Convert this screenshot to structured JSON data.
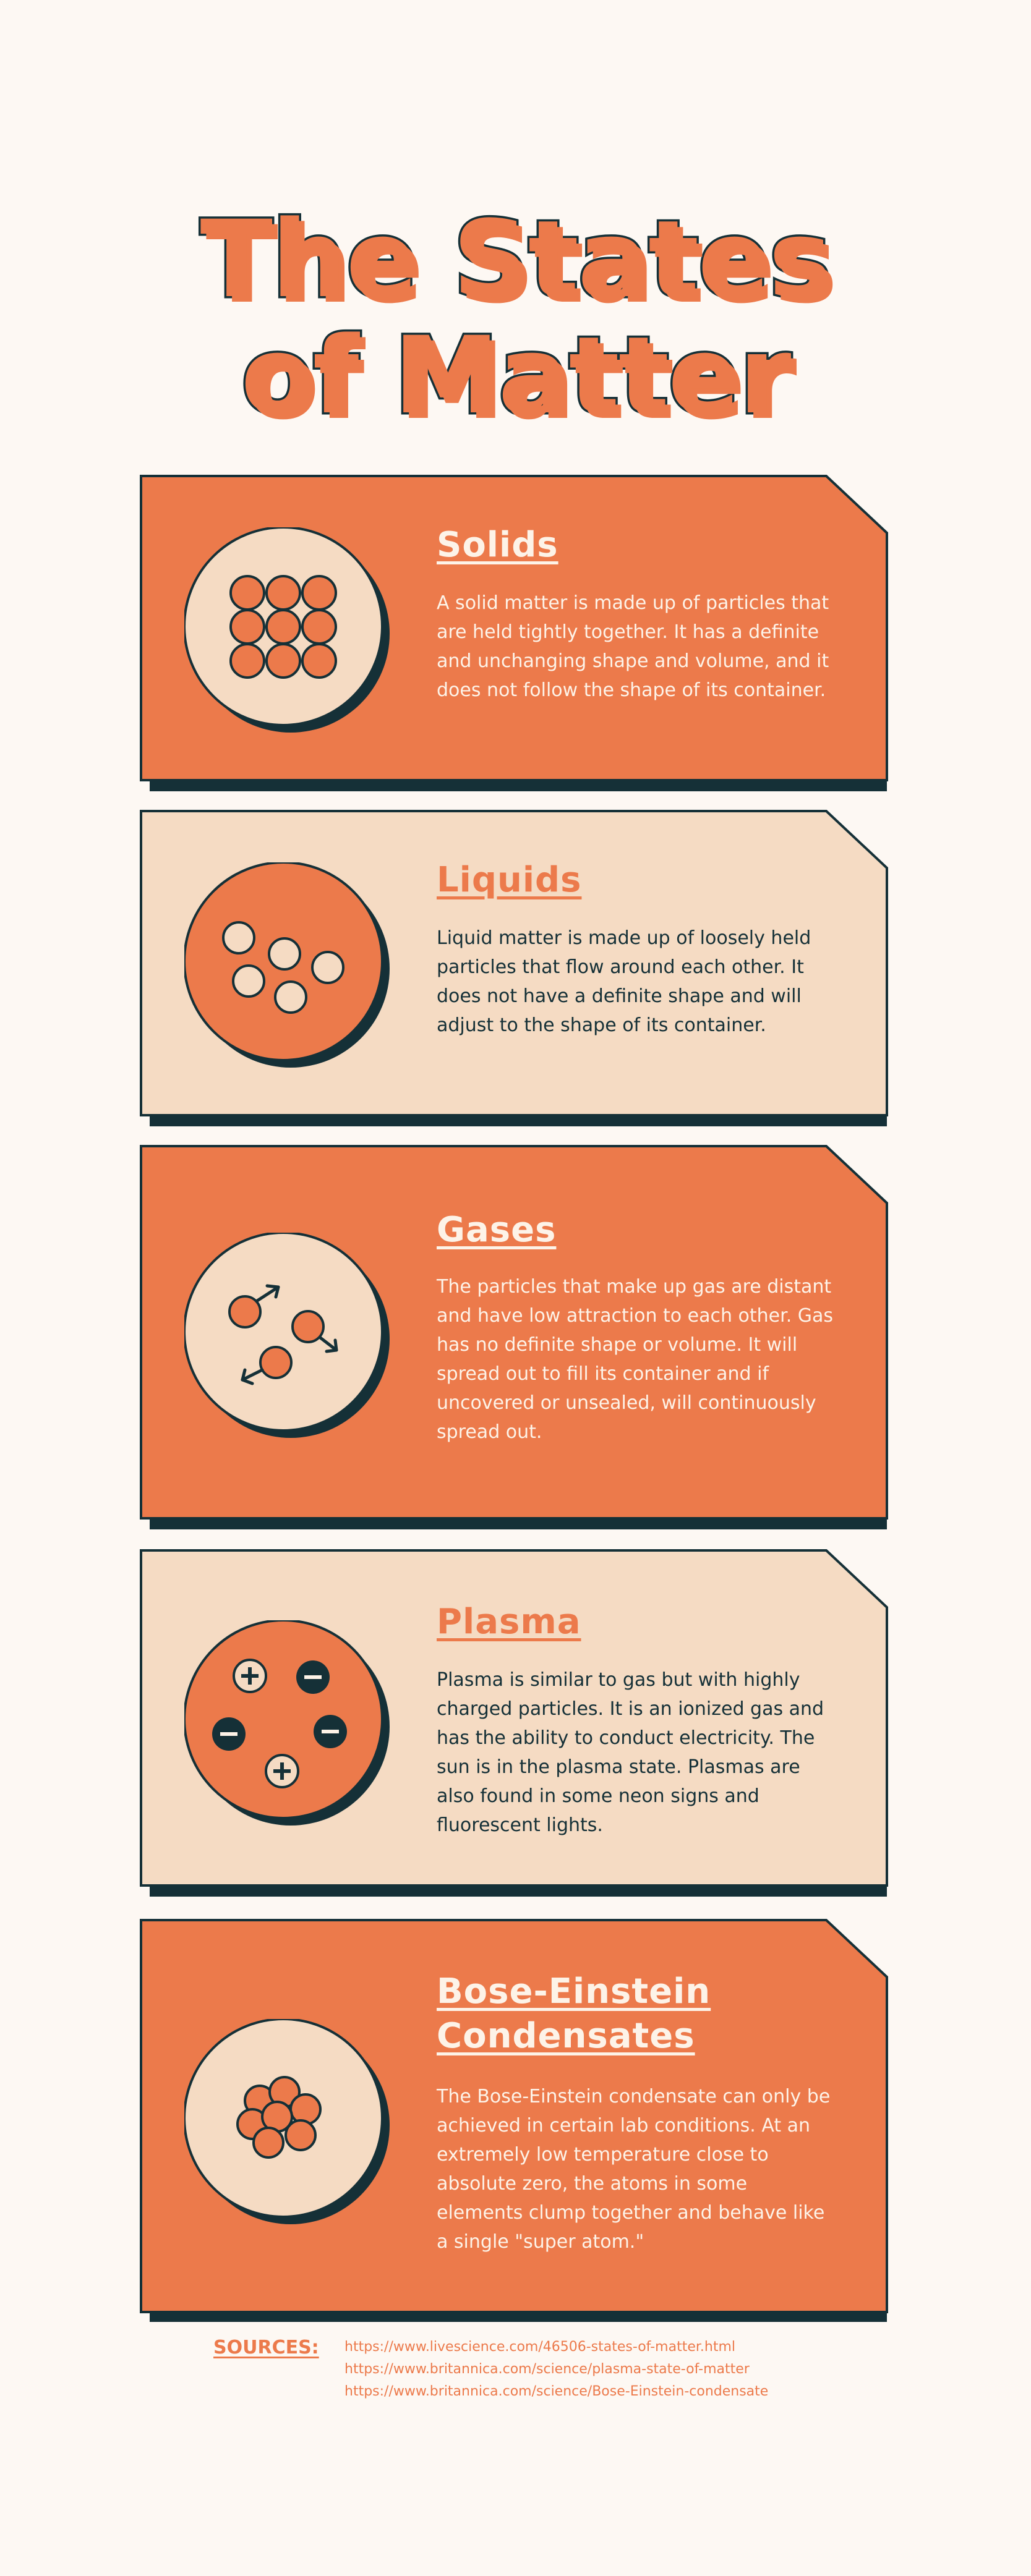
{
  "title": {
    "line1": "The States",
    "line2": "of Matter"
  },
  "colors": {
    "orange": "#ec7a4b",
    "beige": "#f5dbc3",
    "dark": "#153037",
    "cream": "#fdf8f3"
  },
  "states": [
    {
      "name": "Solids",
      "description": "A solid matter is made up of particles that are held tightly together. It has a definite and unchanging shape and volume, and it does not follow the shape of its container.",
      "icon": "solid-particles-icon"
    },
    {
      "name": "Liquids",
      "description": "Liquid matter is made up of loosely held particles that flow around each other. It does not have a definite shape and will adjust to the shape of its container.",
      "icon": "liquid-particles-icon"
    },
    {
      "name": "Gases",
      "description": "The particles that make up gas are distant and have low attraction to each other. Gas has no definite shape or volume. It will spread out to fill its container and if uncovered or unsealed, will continuously spread out.",
      "icon": "gas-particles-icon"
    },
    {
      "name": "Plasma",
      "description": "Plasma is similar to gas but with highly charged particles. It is an ionized gas and has the ability to conduct electricity. The sun is in the plasma state. Plasmas are also found in some neon signs and fluorescent lights.",
      "icon": "plasma-charges-icon"
    },
    {
      "name_line1": "Bose-Einstein",
      "name_line2": "Condensates",
      "description": "The Bose-Einstein condensate can only be achieved in certain lab conditions. At an extremely low temperature close to absolute zero, the atoms in some elements clump together and behave like a single \"super atom.\"",
      "icon": "condensate-cluster-icon"
    }
  ],
  "sources": {
    "label": "SOURCES:",
    "links": [
      "https://www.livescience.com/46506-states-of-matter.html",
      "https://www.britannica.com/science/plasma-state-of-matter",
      "https://www.britannica.com/science/Bose-Einstein-condensate"
    ]
  }
}
